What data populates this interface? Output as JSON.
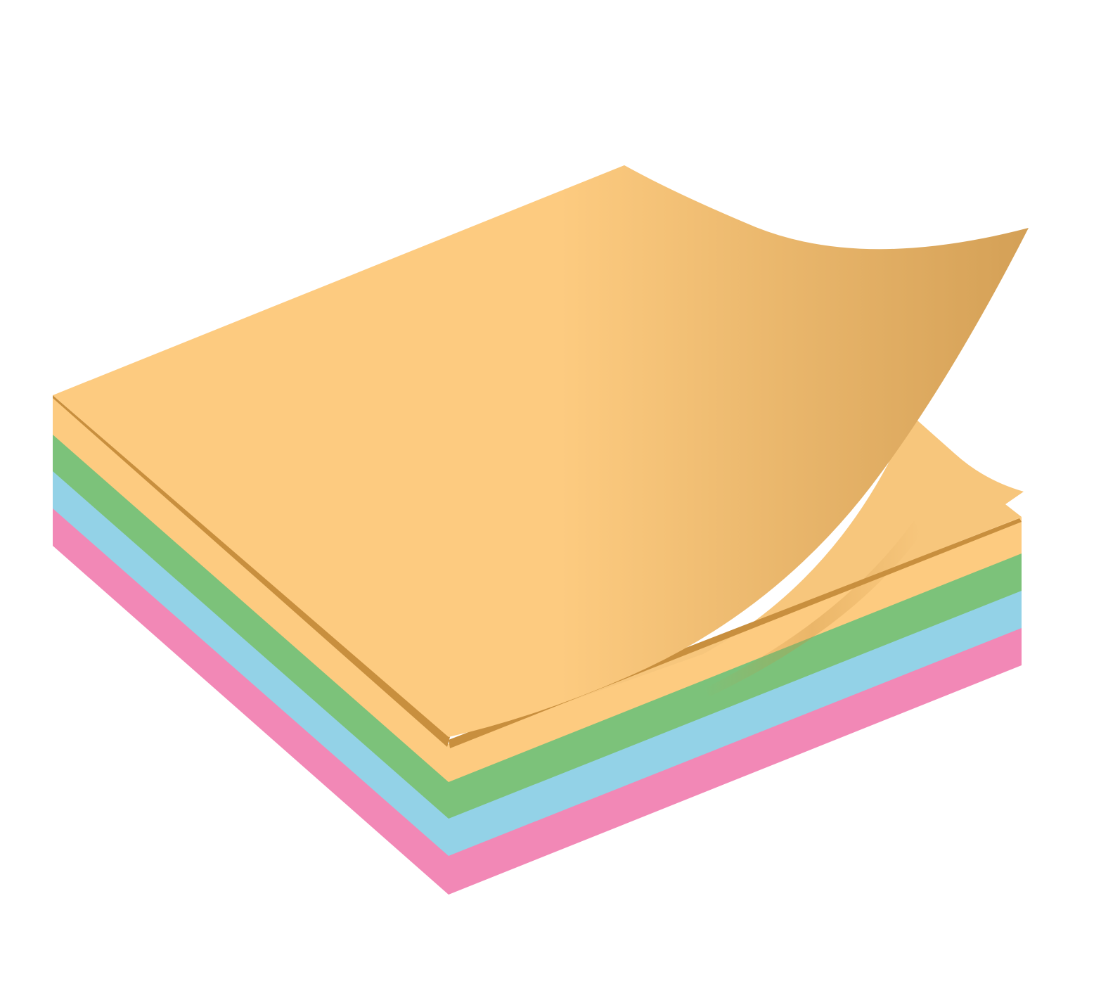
{
  "illustration": {
    "subject": "sticky-note-pad",
    "layers": [
      {
        "name": "top-sheet",
        "color": "#FCCB7E"
      },
      {
        "name": "orange-layer",
        "color": "#FDCB80"
      },
      {
        "name": "green-layer",
        "color": "#7CC27A"
      },
      {
        "name": "blue-layer",
        "color": "#93D2E7"
      },
      {
        "name": "pink-layer",
        "color": "#F288B6"
      }
    ],
    "curl": {
      "gradient_start": "#FDCB80",
      "gradient_end": "#D4A056",
      "underside_color": "#F7C67C",
      "edge_shadow": "#C88F3E"
    },
    "background": "#FFFFFF"
  }
}
